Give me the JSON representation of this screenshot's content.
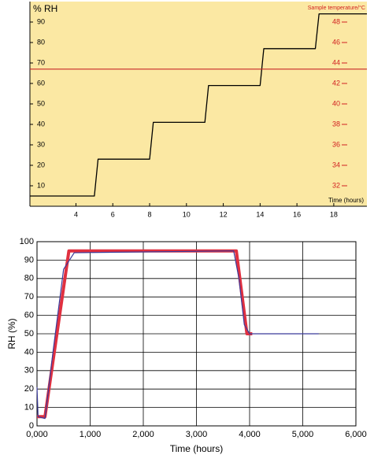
{
  "chart_data": [
    {
      "type": "line",
      "ylabel": "% RH",
      "y2label": "Sample temperature/°C",
      "xlabel": "Time (hours)",
      "background": "#fbe8a3",
      "y2color": "#d22020",
      "xlim": [
        1.5,
        19.8
      ],
      "xticks": [
        4,
        6,
        8,
        10,
        12,
        14,
        16,
        18
      ],
      "ylim": [
        0,
        100
      ],
      "yticks": [
        10,
        20,
        30,
        40,
        50,
        60,
        70,
        80,
        90
      ],
      "y2lim": [
        30,
        50
      ],
      "y2ticks": [
        32,
        34,
        36,
        38,
        40,
        42,
        44,
        46,
        48
      ],
      "series": [
        {
          "color": "#000000",
          "width": 1.3,
          "x": [
            1.5,
            5.0,
            5.2,
            8.0,
            8.2,
            11.0,
            11.2,
            14.0,
            14.2,
            17.0,
            17.2,
            19.8
          ],
          "values": [
            5,
            5,
            23,
            23,
            41,
            41,
            59,
            59,
            77,
            77,
            94,
            94
          ]
        },
        {
          "color": "#c82828",
          "width": 1.2,
          "axis": "y2",
          "x": [
            1.5,
            19.8
          ],
          "values": [
            43.4,
            43.4
          ]
        }
      ]
    },
    {
      "type": "line",
      "ylabel": "RH (%)",
      "xlabel": "Time (hours)",
      "grid": true,
      "xlim": [
        0,
        6000
      ],
      "xticks": [
        {
          "value": 0,
          "label": "0,000"
        },
        {
          "value": 1000,
          "label": "1,000"
        },
        {
          "value": 2000,
          "label": "2,000"
        },
        {
          "value": 3000,
          "label": "3,000"
        },
        {
          "value": 4000,
          "label": "4,000"
        },
        {
          "value": 5000,
          "label": "5,000"
        },
        {
          "value": 6000,
          "label": "6,000"
        }
      ],
      "ylim": [
        0,
        100
      ],
      "yticks": [
        0,
        10,
        20,
        30,
        40,
        50,
        60,
        70,
        80,
        90,
        100
      ],
      "series": [
        {
          "color": "#e03040",
          "width": 4,
          "x": [
            0,
            150,
            600,
            3750,
            3950,
            4050
          ],
          "values": [
            5,
            5,
            95,
            95,
            50,
            50
          ]
        },
        {
          "color": "#3a3a9a",
          "width": 1.2,
          "x": [
            0,
            20,
            150,
            300,
            500,
            700,
            3700,
            3800,
            3900,
            4000,
            5300
          ],
          "values": [
            21,
            5,
            4,
            40,
            85,
            94,
            95,
            80,
            55,
            50,
            50
          ]
        }
      ]
    }
  ]
}
